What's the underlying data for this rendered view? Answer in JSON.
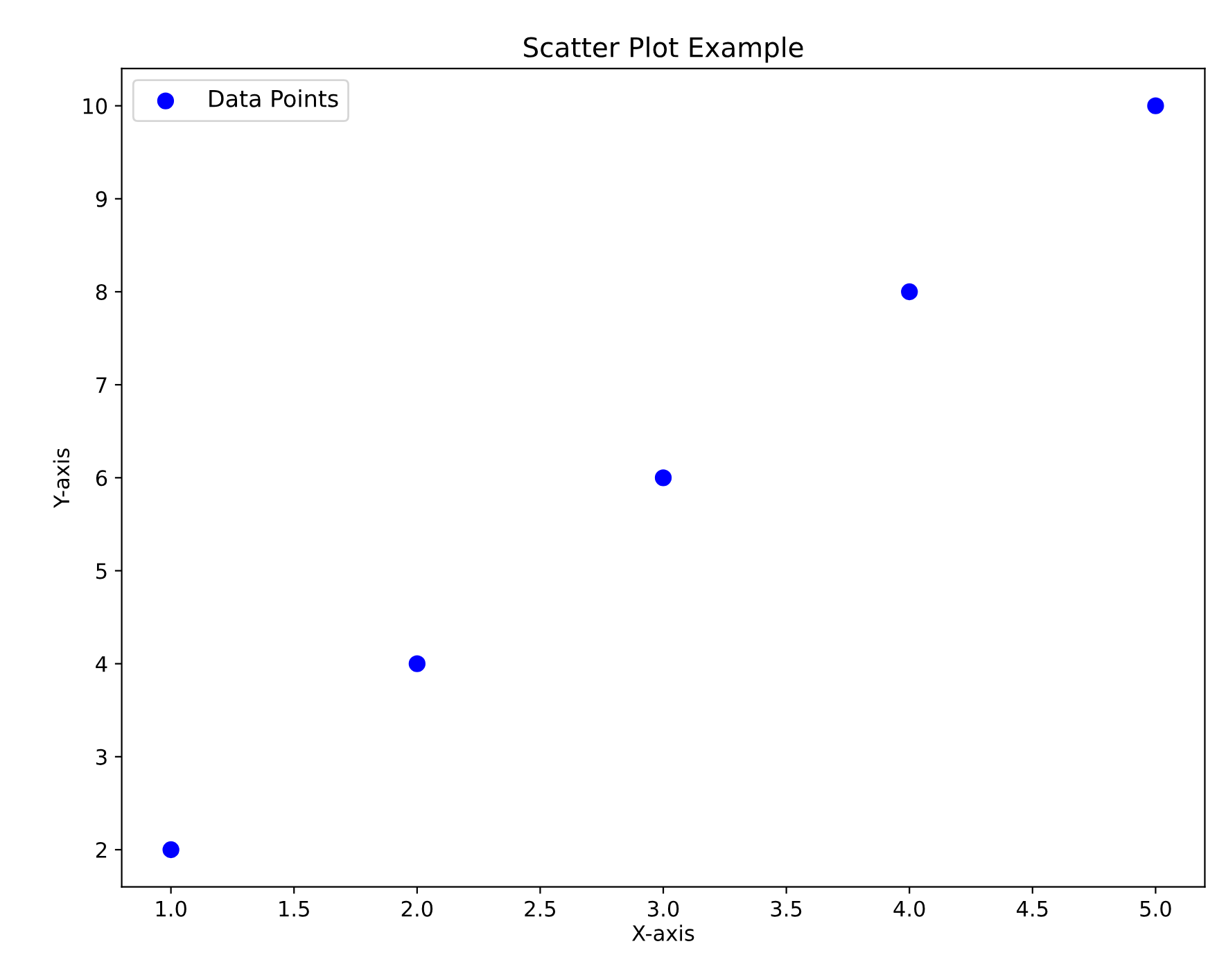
{
  "chart_data": {
    "type": "scatter",
    "title": "Scatter Plot Example",
    "xlabel": "X-axis",
    "ylabel": "Y-axis",
    "x": [
      1.0,
      2.0,
      3.0,
      4.0,
      5.0
    ],
    "series": [
      {
        "name": "Data Points",
        "color": "#0000ff",
        "values": [
          2,
          4,
          6,
          8,
          10
        ]
      }
    ],
    "xlim": [
      0.8,
      5.2
    ],
    "ylim": [
      1.6,
      10.4
    ],
    "xticks": [
      {
        "value": 1.0,
        "label": "1.0"
      },
      {
        "value": 1.5,
        "label": "1.5"
      },
      {
        "value": 2.0,
        "label": "2.0"
      },
      {
        "value": 2.5,
        "label": "2.5"
      },
      {
        "value": 3.0,
        "label": "3.0"
      },
      {
        "value": 3.5,
        "label": "3.5"
      },
      {
        "value": 4.0,
        "label": "4.0"
      },
      {
        "value": 4.5,
        "label": "4.5"
      },
      {
        "value": 5.0,
        "label": "5.0"
      }
    ],
    "yticks": [
      2,
      3,
      4,
      5,
      6,
      7,
      8,
      9,
      10
    ],
    "marker": "circle",
    "legend": "top left",
    "grid": false
  }
}
